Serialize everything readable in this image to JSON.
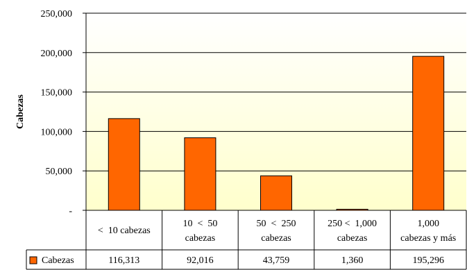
{
  "chart_data": {
    "type": "bar",
    "ylabel": "Cabezas",
    "ylim": [
      0,
      250000
    ],
    "yticks": [
      0,
      50000,
      100000,
      150000,
      200000,
      250000
    ],
    "ytick_labels": [
      "-",
      "50,000",
      "100,000",
      "150,000",
      "200,000",
      "250,000"
    ],
    "categories": [
      [
        "<  10 cabezas"
      ],
      [
        "10  <  50",
        "cabezas"
      ],
      [
        "50  <  250",
        "cabezas"
      ],
      [
        "250 <  1,000",
        "cabezas"
      ],
      [
        "1,000",
        "cabezas y más"
      ]
    ],
    "series": [
      {
        "name": "Cabezas",
        "values": [
          116313,
          92016,
          43759,
          1360,
          195296
        ],
        "value_labels": [
          "116,313",
          "92,016",
          "43,759",
          "1,360",
          "195,296"
        ],
        "color": "#FF6600",
        "edge_color": "#000000"
      }
    ],
    "background_gradient": [
      "#FFFFFF",
      "#FFFFCC"
    ],
    "grid": true,
    "legend": "data-table"
  }
}
